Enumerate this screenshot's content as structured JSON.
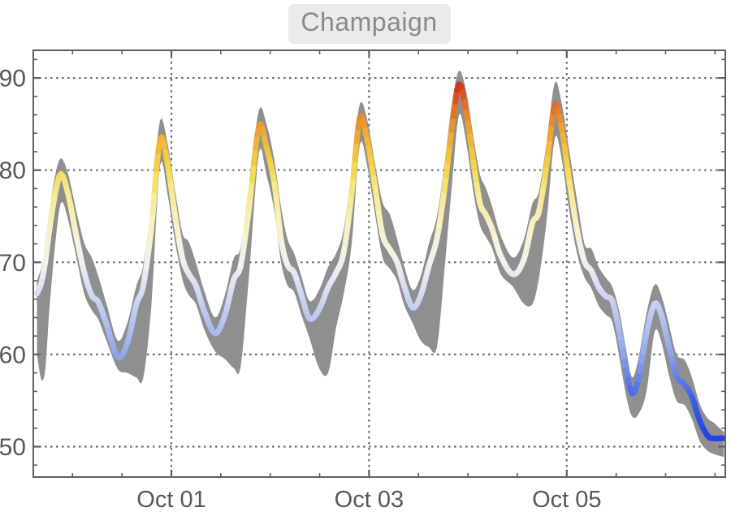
{
  "title_badge": {
    "text": "Champaign"
  },
  "chart_data": {
    "type": "line",
    "title": "Champaign",
    "description": "Daily air temperature curve with gray min/max uncertainty band; line colored by temperature (blue=cold, yellow/orange/red=hot)",
    "x_axis": {
      "unit": "days relative to Oct 01 00:00",
      "range_days": [
        -1.397,
        5.604
      ],
      "major_ticks": [
        {
          "d": 0,
          "label": "Oct 01"
        },
        {
          "d": 2,
          "label": "Oct 03"
        },
        {
          "d": 4,
          "label": "Oct 05"
        }
      ],
      "minor_tick_step_days": 0.5
    },
    "y_axis": {
      "range": [
        46.7,
        93.0
      ],
      "major_ticks": [
        {
          "v": 50,
          "label": "50"
        },
        {
          "v": 60,
          "label": "60"
        },
        {
          "v": 70,
          "label": "70"
        },
        {
          "v": 80,
          "label": "80"
        },
        {
          "v": 90,
          "label": "90"
        }
      ],
      "minor_tick_step": 2
    },
    "grid": {
      "style": "dotted",
      "color": "#6e6e6e"
    },
    "frame_color": "#5f5f5f",
    "tick_label_color": "#585858",
    "band_color": "#8f8f8f",
    "line_width": 7,
    "color_scale": [
      [
        50,
        "#1e3ee0"
      ],
      [
        55,
        "#3c5ee6"
      ],
      [
        60,
        "#90a6ea"
      ],
      [
        65,
        "#c2cef2"
      ],
      [
        68,
        "#dfe5f4"
      ],
      [
        70,
        "#f1f2ef"
      ],
      [
        72,
        "#f6f2dc"
      ],
      [
        75,
        "#f8efb6"
      ],
      [
        78,
        "#f6e888"
      ],
      [
        80,
        "#f3d852"
      ],
      [
        82,
        "#f0c342"
      ],
      [
        84,
        "#eea736"
      ],
      [
        86,
        "#e8812c"
      ],
      [
        88,
        "#dc5120"
      ],
      [
        90,
        "#cc1b12"
      ]
    ],
    "series_columns": [
      "day_offset",
      "band_low",
      "temp",
      "band_high"
    ],
    "points": [
      [
        -1.36,
        60.0,
        66.6,
        68.0
      ],
      [
        -1.315,
        57.2,
        67.8,
        69.5
      ],
      [
        -1.274,
        58.5,
        70.2,
        72.0
      ],
      [
        -1.241,
        64.0,
        73.0,
        75.0
      ],
      [
        -1.175,
        72.0,
        77.5,
        79.5
      ],
      [
        -1.117,
        76.5,
        79.6,
        81.3
      ],
      [
        -1.043,
        74.5,
        77.3,
        79.5
      ],
      [
        -0.961,
        70.5,
        72.8,
        75.5
      ],
      [
        -0.879,
        66.5,
        68.8,
        72.0
      ],
      [
        -0.805,
        64.8,
        66.4,
        70.5
      ],
      [
        -0.74,
        63.8,
        65.7,
        68.5
      ],
      [
        -0.657,
        61.5,
        63.3,
        65.5
      ],
      [
        -0.542,
        58.4,
        59.7,
        61.5
      ],
      [
        -0.444,
        58.0,
        61.3,
        63.5
      ],
      [
        -0.353,
        57.5,
        65.5,
        67.5
      ],
      [
        -0.288,
        57.3,
        67.3,
        69.5
      ],
      [
        -0.205,
        65.0,
        73.5,
        76.0
      ],
      [
        -0.115,
        80.5,
        83.3,
        85.4
      ],
      [
        -0.041,
        77.5,
        80.8,
        83.0
      ],
      [
        0.041,
        72.0,
        74.8,
        77.5
      ],
      [
        0.115,
        68.0,
        70.3,
        73.0
      ],
      [
        0.173,
        66.5,
        68.8,
        72.3
      ],
      [
        0.247,
        65.5,
        67.5,
        70.0
      ],
      [
        0.329,
        62.8,
        64.8,
        67.0
      ],
      [
        0.444,
        60.3,
        62.3,
        64.0
      ],
      [
        0.542,
        59.5,
        64.3,
        66.5
      ],
      [
        0.633,
        58.5,
        68.2,
        70.5
      ],
      [
        0.698,
        58.5,
        69.5,
        71.5
      ],
      [
        0.781,
        68.0,
        75.5,
        78.0
      ],
      [
        0.887,
        82.0,
        84.8,
        86.6
      ],
      [
        0.961,
        79.5,
        82.5,
        85.0
      ],
      [
        1.043,
        75.5,
        78.5,
        81.0
      ],
      [
        1.109,
        70.0,
        72.5,
        76.0
      ],
      [
        1.175,
        67.5,
        69.7,
        72.5
      ],
      [
        1.241,
        66.8,
        68.9,
        71.0
      ],
      [
        1.315,
        64.3,
        66.5,
        68.5
      ],
      [
        1.397,
        61.8,
        63.9,
        65.8
      ],
      [
        1.495,
        58.5,
        64.9,
        67.0
      ],
      [
        1.586,
        58.0,
        67.3,
        69.5
      ],
      [
        1.668,
        63.0,
        68.9,
        71.0
      ],
      [
        1.742,
        66.5,
        71.0,
        73.5
      ],
      [
        1.824,
        72.0,
        77.5,
        80.0
      ],
      [
        1.906,
        82.8,
        85.7,
        87.2
      ],
      [
        1.98,
        80.5,
        83.3,
        85.5
      ],
      [
        2.063,
        75.0,
        78.0,
        80.5
      ],
      [
        2.136,
        70.5,
        73.0,
        76.5
      ],
      [
        2.21,
        69.3,
        71.4,
        75.2
      ],
      [
        2.284,
        68.0,
        70.0,
        72.5
      ],
      [
        2.35,
        65.5,
        67.6,
        69.8
      ],
      [
        2.44,
        63.4,
        65.1,
        67.0
      ],
      [
        2.523,
        61.5,
        66.4,
        68.5
      ],
      [
        2.605,
        60.8,
        69.6,
        72.0
      ],
      [
        2.687,
        60.8,
        72.6,
        75.0
      ],
      [
        2.761,
        69.0,
        77.8,
        80.5
      ],
      [
        2.835,
        78.0,
        84.3,
        87.0
      ],
      [
        2.909,
        86.0,
        89.3,
        90.8
      ],
      [
        2.983,
        83.0,
        86.3,
        88.5
      ],
      [
        3.057,
        77.5,
        80.8,
        83.5
      ],
      [
        3.122,
        74.0,
        76.4,
        79.5
      ],
      [
        3.18,
        72.8,
        75.2,
        78.1
      ],
      [
        3.246,
        71.5,
        73.6,
        76.0
      ],
      [
        3.328,
        68.8,
        70.8,
        73.0
      ],
      [
        3.459,
        67.3,
        68.7,
        70.5
      ],
      [
        3.566,
        65.5,
        70.3,
        72.5
      ],
      [
        3.656,
        65.5,
        74.4,
        76.5
      ],
      [
        3.714,
        68.0,
        75.3,
        77.5
      ],
      [
        3.796,
        74.5,
        80.5,
        83.0
      ],
      [
        3.878,
        83.5,
        87.0,
        89.5
      ],
      [
        3.944,
        81.5,
        84.8,
        87.5
      ],
      [
        4.026,
        75.5,
        78.8,
        82.0
      ],
      [
        4.108,
        70.8,
        73.3,
        76.5
      ],
      [
        4.182,
        68.3,
        70.0,
        71.9
      ],
      [
        4.248,
        67.2,
        69.1,
        71.5
      ],
      [
        4.322,
        65.3,
        67.3,
        69.5
      ],
      [
        4.396,
        64.3,
        66.3,
        68.3
      ],
      [
        4.462,
        63.5,
        65.8,
        67.3
      ],
      [
        4.535,
        59.5,
        62.3,
        64.5
      ],
      [
        4.601,
        55.5,
        58.3,
        60.5
      ],
      [
        4.659,
        53.3,
        55.8,
        57.5
      ],
      [
        4.724,
        53.5,
        57.3,
        59.5
      ],
      [
        4.807,
        56.0,
        62.3,
        64.5
      ],
      [
        4.889,
        62.5,
        65.5,
        67.6
      ],
      [
        4.954,
        61.5,
        64.4,
        66.5
      ],
      [
        5.028,
        58.0,
        61.1,
        63.5
      ],
      [
        5.11,
        55.0,
        57.7,
        60.0
      ],
      [
        5.193,
        54.5,
        56.7,
        59.4
      ],
      [
        5.266,
        53.0,
        55.4,
        57.5
      ],
      [
        5.349,
        50.5,
        52.7,
        54.5
      ],
      [
        5.431,
        49.5,
        51.1,
        53.0
      ],
      [
        5.488,
        49.2,
        50.9,
        52.6
      ],
      [
        5.546,
        49.0,
        50.9,
        52.0
      ],
      [
        5.59,
        48.9,
        50.9,
        51.6
      ]
    ]
  }
}
